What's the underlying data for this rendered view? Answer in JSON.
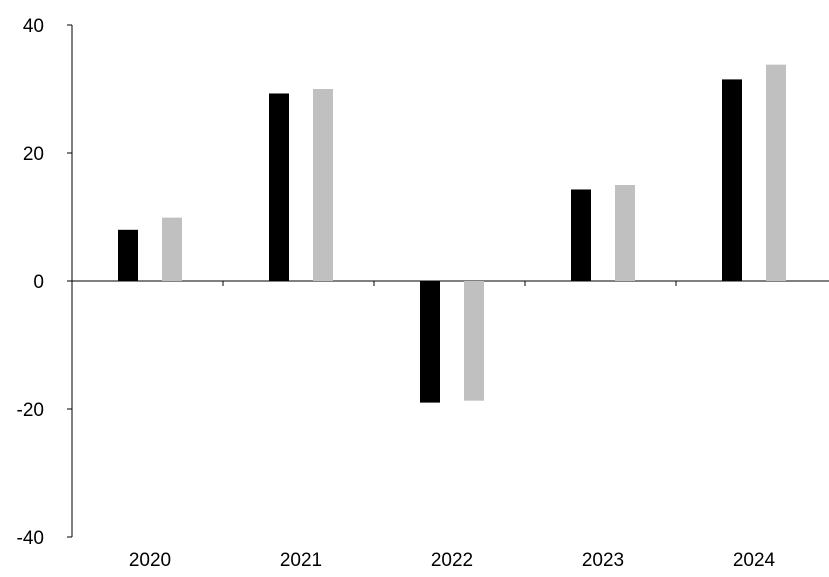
{
  "chart_data": {
    "type": "bar",
    "title": "",
    "xlabel": "",
    "ylabel": "",
    "categories": [
      "2020",
      "2021",
      "2022",
      "2023",
      "2024"
    ],
    "series": [
      {
        "color": "#000000",
        "values": [
          8,
          29.3,
          -19,
          14.3,
          31.5
        ]
      },
      {
        "color": "#c0c0c0",
        "values": [
          9.9,
          30,
          -18.7,
          15,
          33.8
        ]
      }
    ],
    "ylim": [
      -40,
      40
    ],
    "yticks": [
      -40,
      -20,
      0,
      20,
      40
    ],
    "ytick_labels": [
      "-40",
      "-20",
      "0",
      "20",
      "40"
    ],
    "grid": false,
    "legend": "none"
  }
}
